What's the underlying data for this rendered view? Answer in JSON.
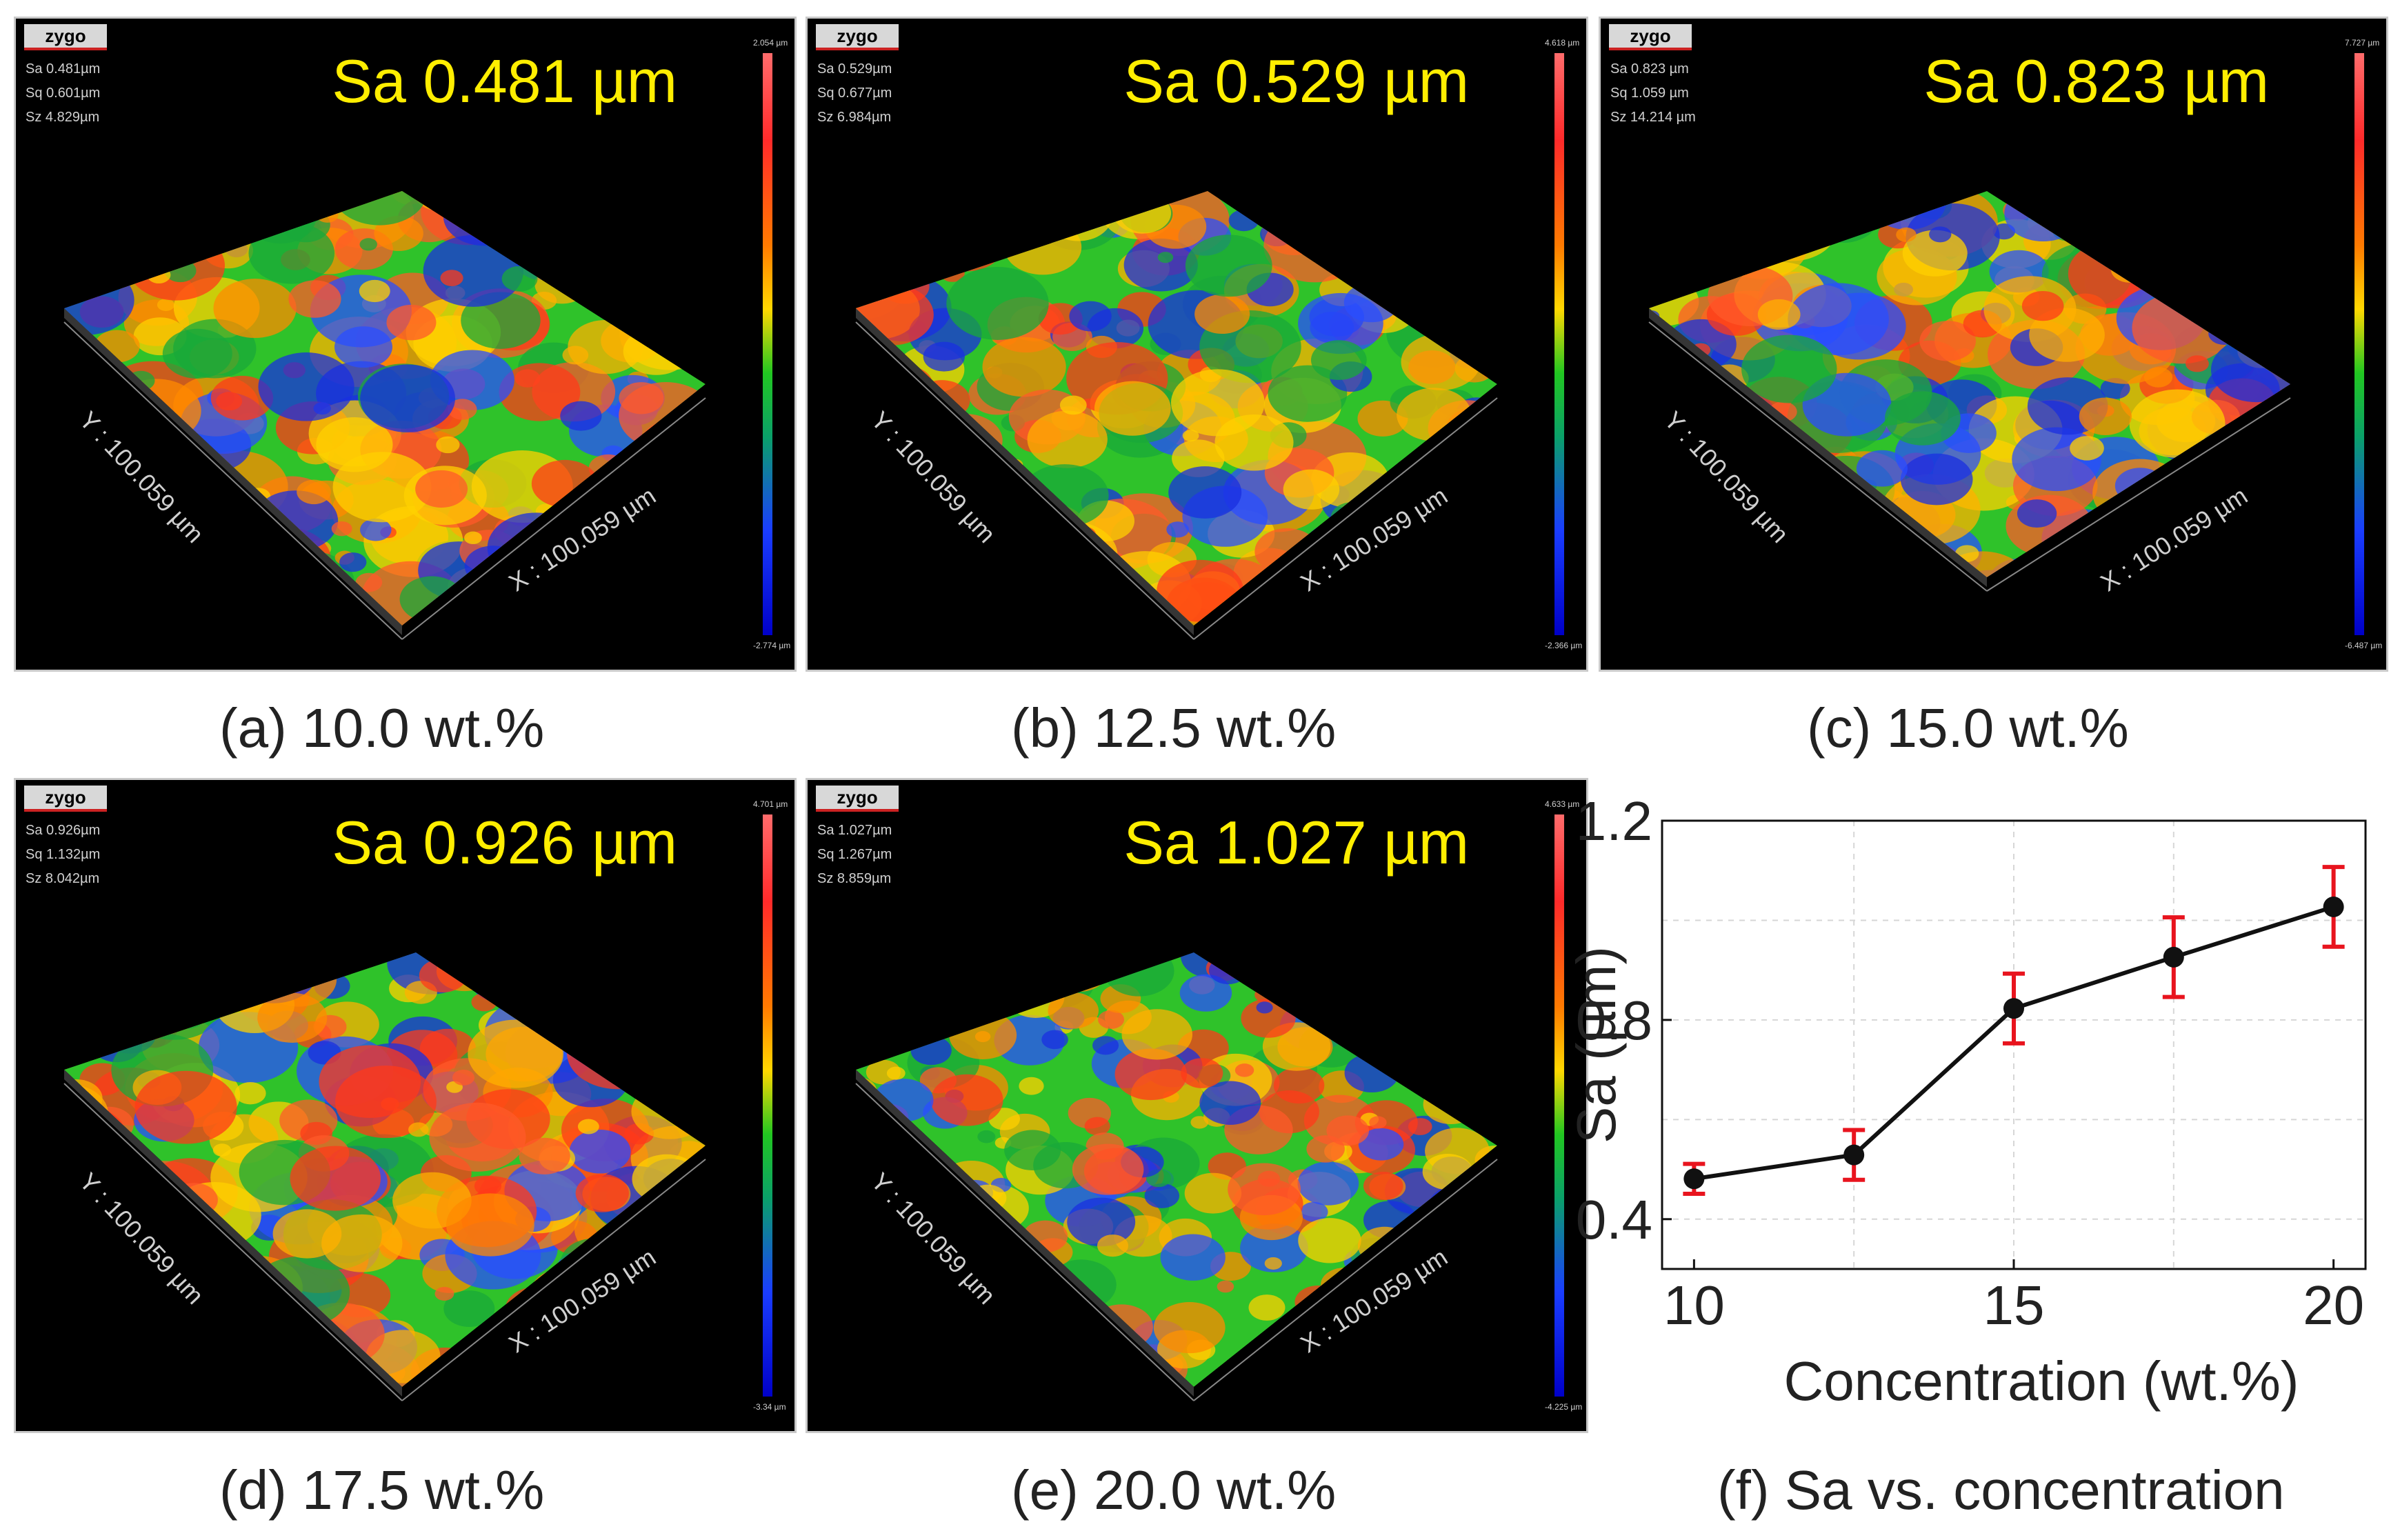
{
  "logo_text": "zygo",
  "panels": [
    {
      "id": "a",
      "sa_label": "Sa 0.481 µm",
      "stats": [
        "Sa 0.481µm",
        "Sq 0.601µm",
        "Sz 4.829µm"
      ],
      "cb_max": "2.054 µm",
      "cb_min": "-2.774 µm",
      "x_axis": "X : 100.059 µm",
      "y_axis": "Y : 100.059 µm",
      "caption": "(a) 10.0 wt.%"
    },
    {
      "id": "b",
      "sa_label": "Sa 0.529 µm",
      "stats": [
        "Sa 0.529µm",
        "Sq 0.677µm",
        "Sz 6.984µm"
      ],
      "cb_max": "4.618 µm",
      "cb_min": "-2.366 µm",
      "x_axis": "X : 100.059 µm",
      "y_axis": "Y : 100.059 µm",
      "caption": "(b) 12.5 wt.%"
    },
    {
      "id": "c",
      "sa_label": "Sa 0.823 µm",
      "stats": [
        "Sa 0.823  µm",
        "Sq 1.059  µm",
        "Sz 14.214 µm"
      ],
      "cb_max": "7.727 µm",
      "cb_min": "-6.487 µm",
      "x_axis": "X : 100.059 µm",
      "y_axis": "Y : 100.059 µm",
      "caption": "(c) 15.0 wt.%"
    },
    {
      "id": "d",
      "sa_label": "Sa 0.926 µm",
      "stats": [
        "Sa 0.926µm",
        "Sq 1.132µm",
        "Sz 8.042µm"
      ],
      "cb_max": "4.701 µm",
      "cb_min": "-3.34 µm",
      "x_axis": "X : 100.059 µm",
      "y_axis": "Y : 100.059 µm",
      "caption": "(d) 17.5 wt.%"
    },
    {
      "id": "e",
      "sa_label": "Sa 1.027 µm",
      "stats": [
        "Sa 1.027µm",
        "Sq 1.267µm",
        "Sz 8.859µm"
      ],
      "cb_max": "4.633 µm",
      "cb_min": "-4.225 µm",
      "x_axis": "X : 100.059 µm",
      "y_axis": "Y : 100.059 µm",
      "caption": "(e) 20.0 wt.%"
    }
  ],
  "colors": {
    "label_yellow": "#ffee00",
    "error_bar": "#e8141e",
    "line": "#111111",
    "high": "#ff2a2a",
    "mid": "#21c721",
    "low": "#1a3dff"
  },
  "caption_f": "(f) Sa vs. concentration",
  "chart_data": {
    "type": "line",
    "xlabel": "Concentration (wt.%)",
    "ylabel": "Sa (µm)",
    "x_ticks": [
      10,
      15,
      20
    ],
    "y_ticks": [
      "0.4",
      "0.8",
      "1.2"
    ],
    "xlim": [
      9.5,
      20.5
    ],
    "ylim": [
      0.3,
      1.2
    ],
    "grid": true,
    "x": [
      10.0,
      12.5,
      15.0,
      17.5,
      20.0
    ],
    "y": [
      0.481,
      0.529,
      0.823,
      0.926,
      1.027
    ],
    "error": [
      0.03,
      0.05,
      0.07,
      0.08,
      0.08
    ]
  }
}
